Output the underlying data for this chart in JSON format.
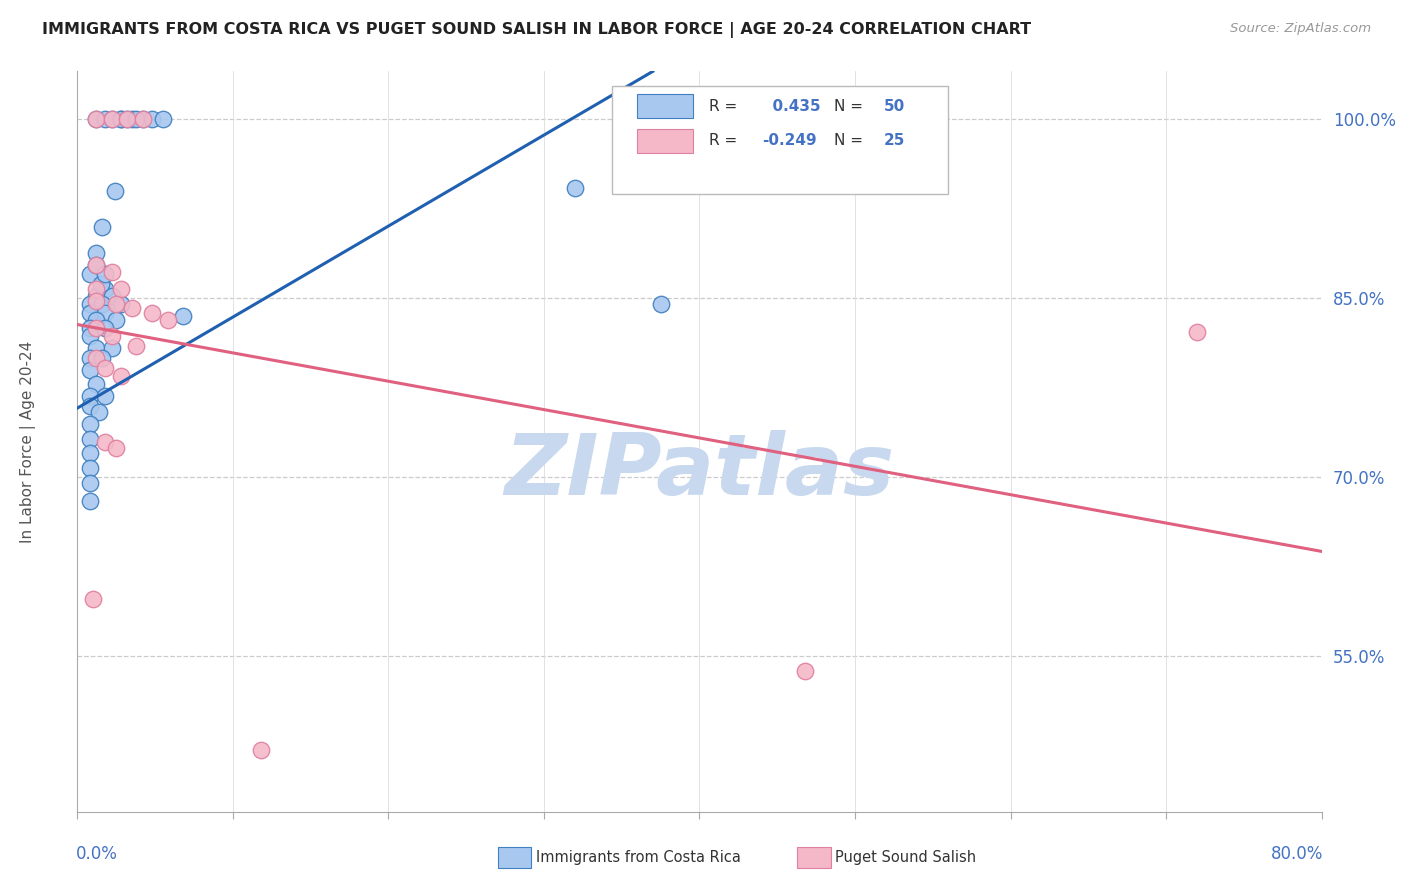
{
  "title": "IMMIGRANTS FROM COSTA RICA VS PUGET SOUND SALISH IN LABOR FORCE | AGE 20-24 CORRELATION CHART",
  "source": "Source: ZipAtlas.com",
  "ylabel": "In Labor Force | Age 20-24",
  "xlim": [
    0.0,
    0.8
  ],
  "ylim": [
    0.42,
    1.04
  ],
  "yticks": [
    0.55,
    0.7,
    0.85,
    1.0
  ],
  "ytick_labels": [
    "55.0%",
    "70.0%",
    "85.0%",
    "100.0%"
  ],
  "xticks": [
    0.0,
    0.1,
    0.2,
    0.3,
    0.4,
    0.5,
    0.6,
    0.7,
    0.8
  ],
  "blue_R": 0.435,
  "blue_N": 50,
  "pink_R": -0.249,
  "pink_N": 25,
  "blue_fill": "#A8C8F0",
  "pink_fill": "#F4B8C8",
  "blue_edge": "#4080C0",
  "pink_edge": "#E080A0",
  "blue_line": "#2060B0",
  "pink_line": "#E06080",
  "watermark": "ZIPatlas",
  "watermark_color": "#C8D8EE",
  "blue_dots": [
    [
      0.012,
      1.0
    ],
    [
      0.018,
      1.0
    ],
    [
      0.022,
      1.0
    ],
    [
      0.028,
      1.0
    ],
    [
      0.035,
      1.0
    ],
    [
      0.042,
      1.0
    ],
    [
      0.048,
      1.0
    ],
    [
      0.028,
      1.0
    ],
    [
      0.055,
      1.0
    ],
    [
      0.032,
      1.0
    ],
    [
      0.038,
      1.0
    ],
    [
      0.024,
      0.94
    ],
    [
      0.016,
      0.91
    ],
    [
      0.012,
      0.888
    ],
    [
      0.008,
      0.87
    ],
    [
      0.018,
      0.858
    ],
    [
      0.012,
      0.852
    ],
    [
      0.022,
      0.852
    ],
    [
      0.008,
      0.845
    ],
    [
      0.016,
      0.845
    ],
    [
      0.028,
      0.845
    ],
    [
      0.008,
      0.838
    ],
    [
      0.018,
      0.838
    ],
    [
      0.012,
      0.832
    ],
    [
      0.025,
      0.832
    ],
    [
      0.008,
      0.825
    ],
    [
      0.018,
      0.825
    ],
    [
      0.008,
      0.818
    ],
    [
      0.012,
      0.808
    ],
    [
      0.022,
      0.808
    ],
    [
      0.008,
      0.8
    ],
    [
      0.016,
      0.8
    ],
    [
      0.008,
      0.79
    ],
    [
      0.012,
      0.778
    ],
    [
      0.008,
      0.768
    ],
    [
      0.018,
      0.768
    ],
    [
      0.008,
      0.76
    ],
    [
      0.014,
      0.755
    ],
    [
      0.008,
      0.745
    ],
    [
      0.008,
      0.732
    ],
    [
      0.008,
      0.72
    ],
    [
      0.008,
      0.708
    ],
    [
      0.008,
      0.695
    ],
    [
      0.008,
      0.68
    ],
    [
      0.32,
      0.942
    ],
    [
      0.068,
      0.835
    ],
    [
      0.375,
      0.845
    ],
    [
      0.015,
      0.862
    ],
    [
      0.012,
      0.878
    ],
    [
      0.018,
      0.87
    ]
  ],
  "pink_dots": [
    [
      0.012,
      1.0
    ],
    [
      0.022,
      1.0
    ],
    [
      0.032,
      1.0
    ],
    [
      0.042,
      1.0
    ],
    [
      0.012,
      0.878
    ],
    [
      0.022,
      0.872
    ],
    [
      0.012,
      0.858
    ],
    [
      0.028,
      0.858
    ],
    [
      0.012,
      0.848
    ],
    [
      0.025,
      0.845
    ],
    [
      0.035,
      0.842
    ],
    [
      0.048,
      0.838
    ],
    [
      0.058,
      0.832
    ],
    [
      0.012,
      0.825
    ],
    [
      0.022,
      0.818
    ],
    [
      0.038,
      0.81
    ],
    [
      0.012,
      0.8
    ],
    [
      0.018,
      0.792
    ],
    [
      0.028,
      0.785
    ],
    [
      0.018,
      0.73
    ],
    [
      0.025,
      0.725
    ],
    [
      0.72,
      0.822
    ],
    [
      0.468,
      0.538
    ],
    [
      0.118,
      0.472
    ],
    [
      0.01,
      0.598
    ]
  ],
  "blue_trendline_x": [
    0.0,
    0.37
  ],
  "blue_trendline_y": [
    0.758,
    1.04
  ],
  "pink_trendline_x": [
    0.0,
    0.8
  ],
  "pink_trendline_y": [
    0.828,
    0.638
  ]
}
